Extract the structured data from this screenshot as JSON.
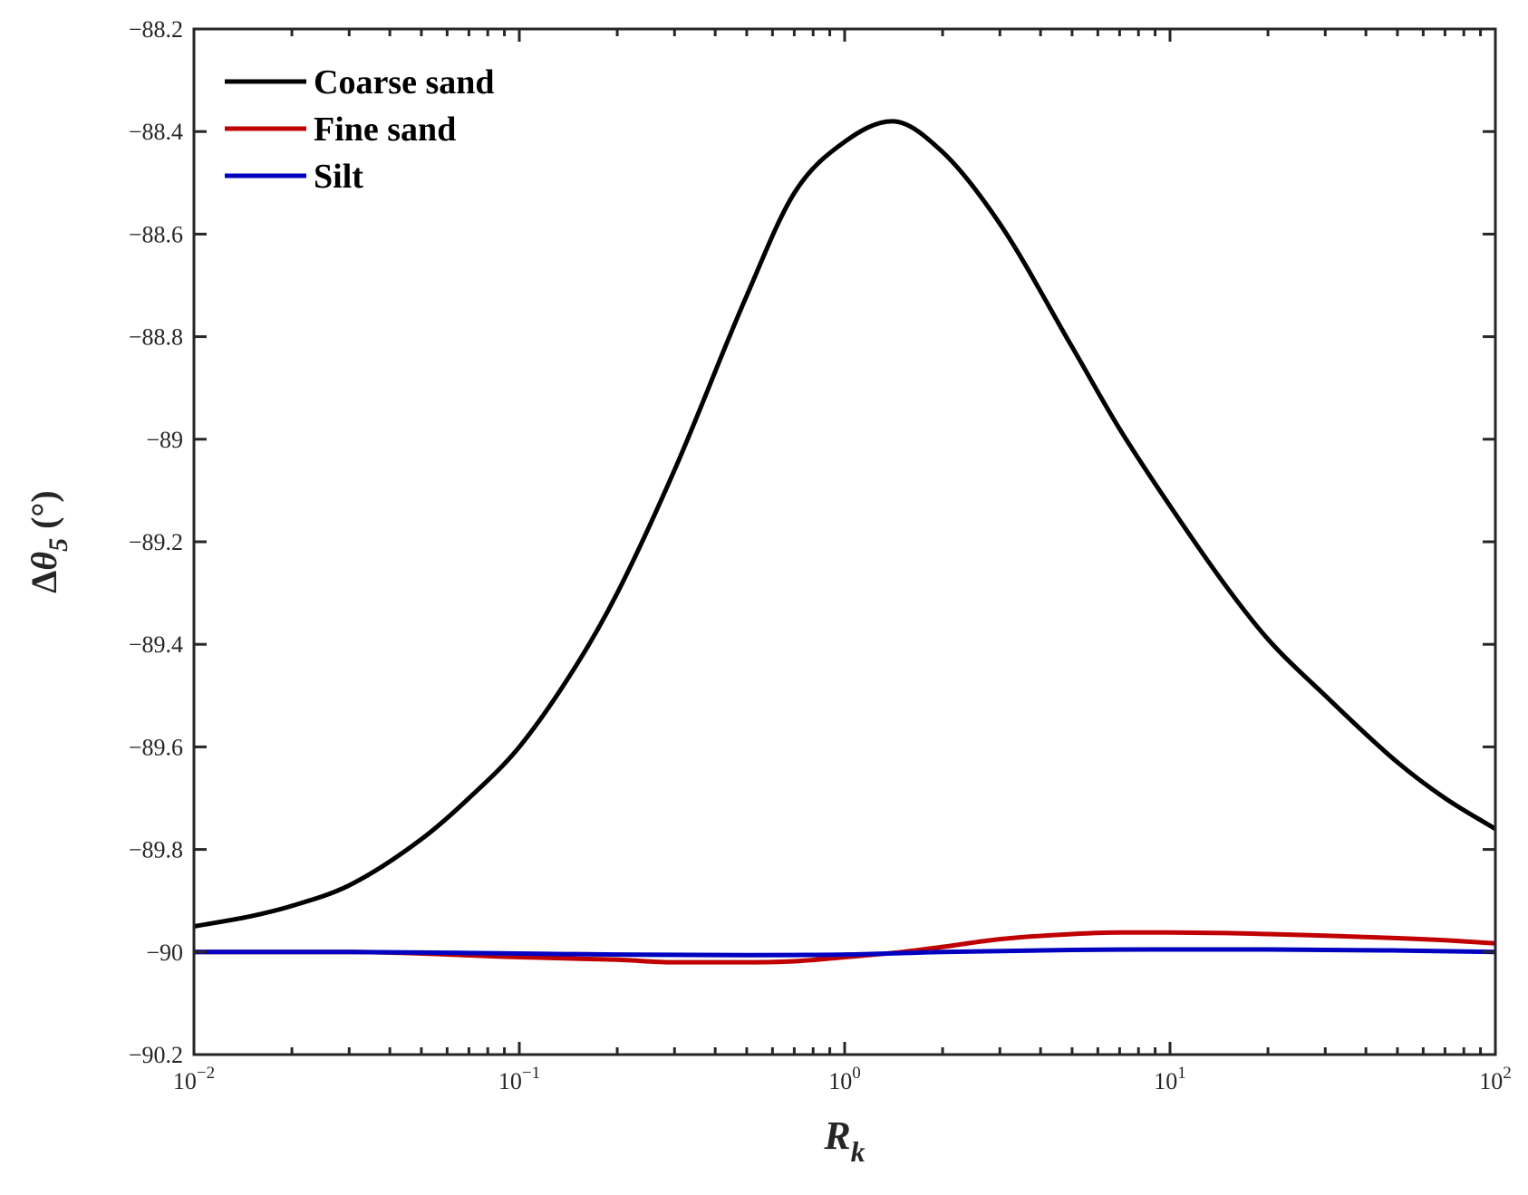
{
  "chart_data": {
    "type": "line",
    "title": "",
    "xlabel": {
      "main": "R",
      "sub": "k"
    },
    "ylabel": {
      "prefix": "Δ",
      "symbol": "θ",
      "sub": "5",
      "unit": "(°)"
    },
    "x_scale": "log",
    "xlim": [
      0.01,
      100
    ],
    "ylim": [
      -90.2,
      -88.2
    ],
    "x_ticks": [
      {
        "base": "10",
        "exp": "−2"
      },
      {
        "base": "10",
        "exp": "−1"
      },
      {
        "base": "10",
        "exp": "0"
      },
      {
        "base": "10",
        "exp": "1"
      },
      {
        "base": "10",
        "exp": "2"
      }
    ],
    "y_ticks": [
      -88.2,
      -88.4,
      -88.6,
      -88.8,
      -89,
      -89.2,
      -89.4,
      -89.6,
      -89.8,
      -90,
      -90.2
    ],
    "y_tick_labels": [
      "−88.2",
      "−88.4",
      "−88.6",
      "−88.8",
      "−89",
      "−89.2",
      "−89.4",
      "−89.6",
      "−89.8",
      "−90",
      "−90.2"
    ],
    "grid": false,
    "legend_position": "top-left",
    "series": [
      {
        "name": "Coarse sand",
        "color": "#000000",
        "x": [
          0.01,
          0.015,
          0.02,
          0.03,
          0.05,
          0.07,
          0.1,
          0.15,
          0.2,
          0.3,
          0.5,
          0.7,
          1.0,
          1.4,
          2.0,
          3.0,
          5.0,
          7.0,
          10.0,
          15.0,
          20.0,
          30.0,
          50.0,
          70.0,
          100.0
        ],
        "values": [
          -89.95,
          -89.93,
          -89.91,
          -89.87,
          -89.78,
          -89.7,
          -89.6,
          -89.44,
          -89.3,
          -89.06,
          -88.72,
          -88.52,
          -88.42,
          -88.38,
          -88.44,
          -88.58,
          -88.82,
          -88.98,
          -89.13,
          -89.29,
          -89.39,
          -89.5,
          -89.63,
          -89.7,
          -89.76
        ]
      },
      {
        "name": "Fine sand",
        "color": "#c00000",
        "x": [
          0.01,
          0.03,
          0.1,
          0.2,
          0.3,
          0.5,
          0.7,
          1.0,
          1.5,
          2.0,
          3.0,
          5.0,
          7.0,
          10.0,
          15.0,
          20.0,
          30.0,
          50.0,
          70.0,
          100.0
        ],
        "values": [
          -90.0,
          -90.0,
          -90.01,
          -90.015,
          -90.02,
          -90.02,
          -90.018,
          -90.01,
          -90.0,
          -89.99,
          -89.975,
          -89.965,
          -89.962,
          -89.962,
          -89.963,
          -89.965,
          -89.968,
          -89.973,
          -89.977,
          -89.983
        ]
      },
      {
        "name": "Silt",
        "color": "#0000c0",
        "x": [
          0.01,
          0.03,
          0.1,
          0.2,
          0.5,
          1.0,
          2.0,
          5.0,
          10.0,
          20.0,
          50.0,
          100.0
        ],
        "values": [
          -90.0,
          -90.0,
          -90.003,
          -90.005,
          -90.006,
          -90.005,
          -90.0,
          -89.996,
          -89.995,
          -89.995,
          -89.997,
          -90.0
        ]
      }
    ]
  }
}
